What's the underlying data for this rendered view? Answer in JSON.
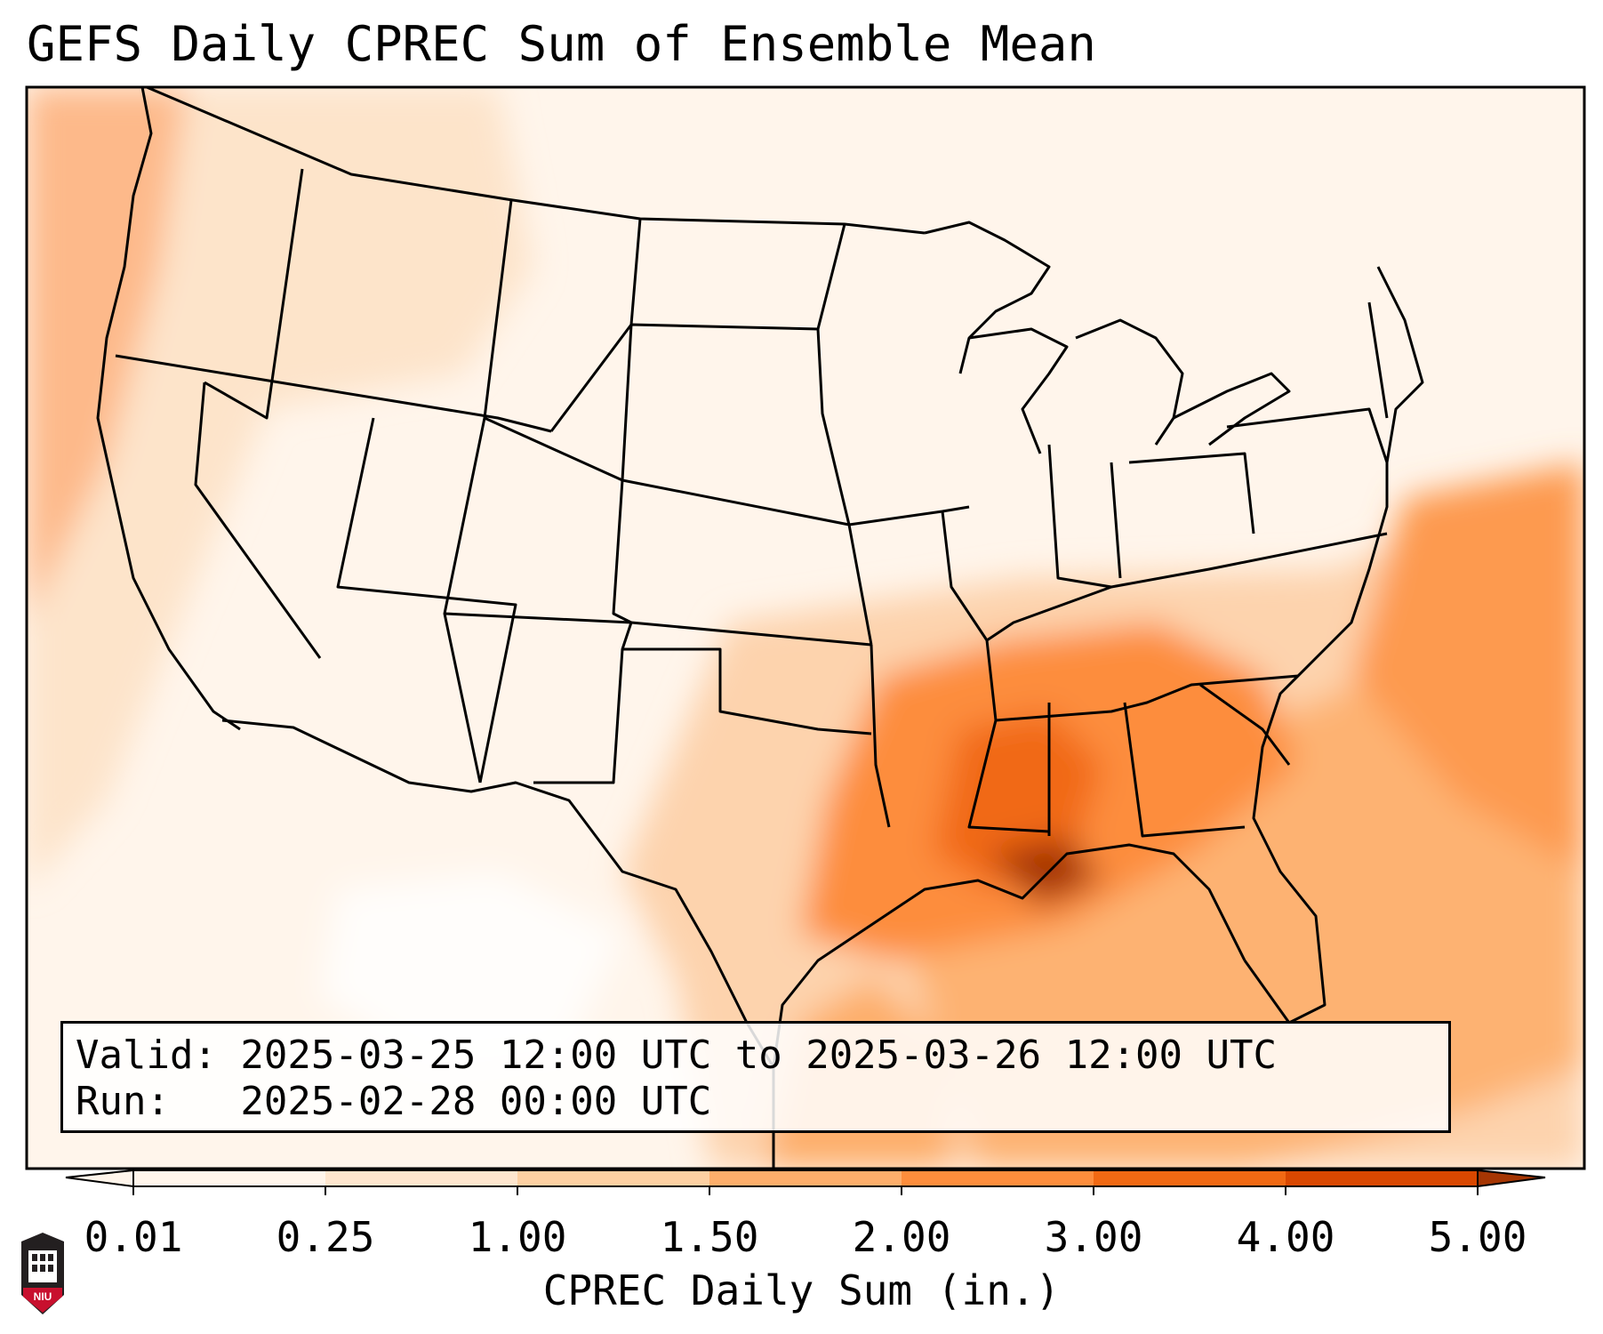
{
  "title": "GEFS Daily CPREC Sum of Ensemble Mean",
  "info": {
    "valid": "Valid: 2025-03-25 12:00 UTC to 2025-03-26 12:00 UTC",
    "run": "Run:   2025-02-28 00:00 UTC"
  },
  "colorbar": {
    "label": "CPREC Daily Sum (in.)",
    "ticks": [
      "0.01",
      "0.25",
      "1.00",
      "1.50",
      "2.00",
      "3.00",
      "4.00",
      "5.00"
    ],
    "colors": [
      "#fff5eb",
      "#fee6ce",
      "#fdd0a2",
      "#fdae6b",
      "#fd8d3c",
      "#f16913",
      "#d94801",
      "#a63603",
      "#7f2704"
    ],
    "extend": "both"
  },
  "logo": {
    "text": "NIU",
    "icon": "niu-logo-icon"
  },
  "colors": {
    "frame": "#000000",
    "borders": "#000000",
    "heavy_rain": "#a63603",
    "moderate_rain": "#fd8d3c",
    "light_rain": "#fee6ce"
  }
}
